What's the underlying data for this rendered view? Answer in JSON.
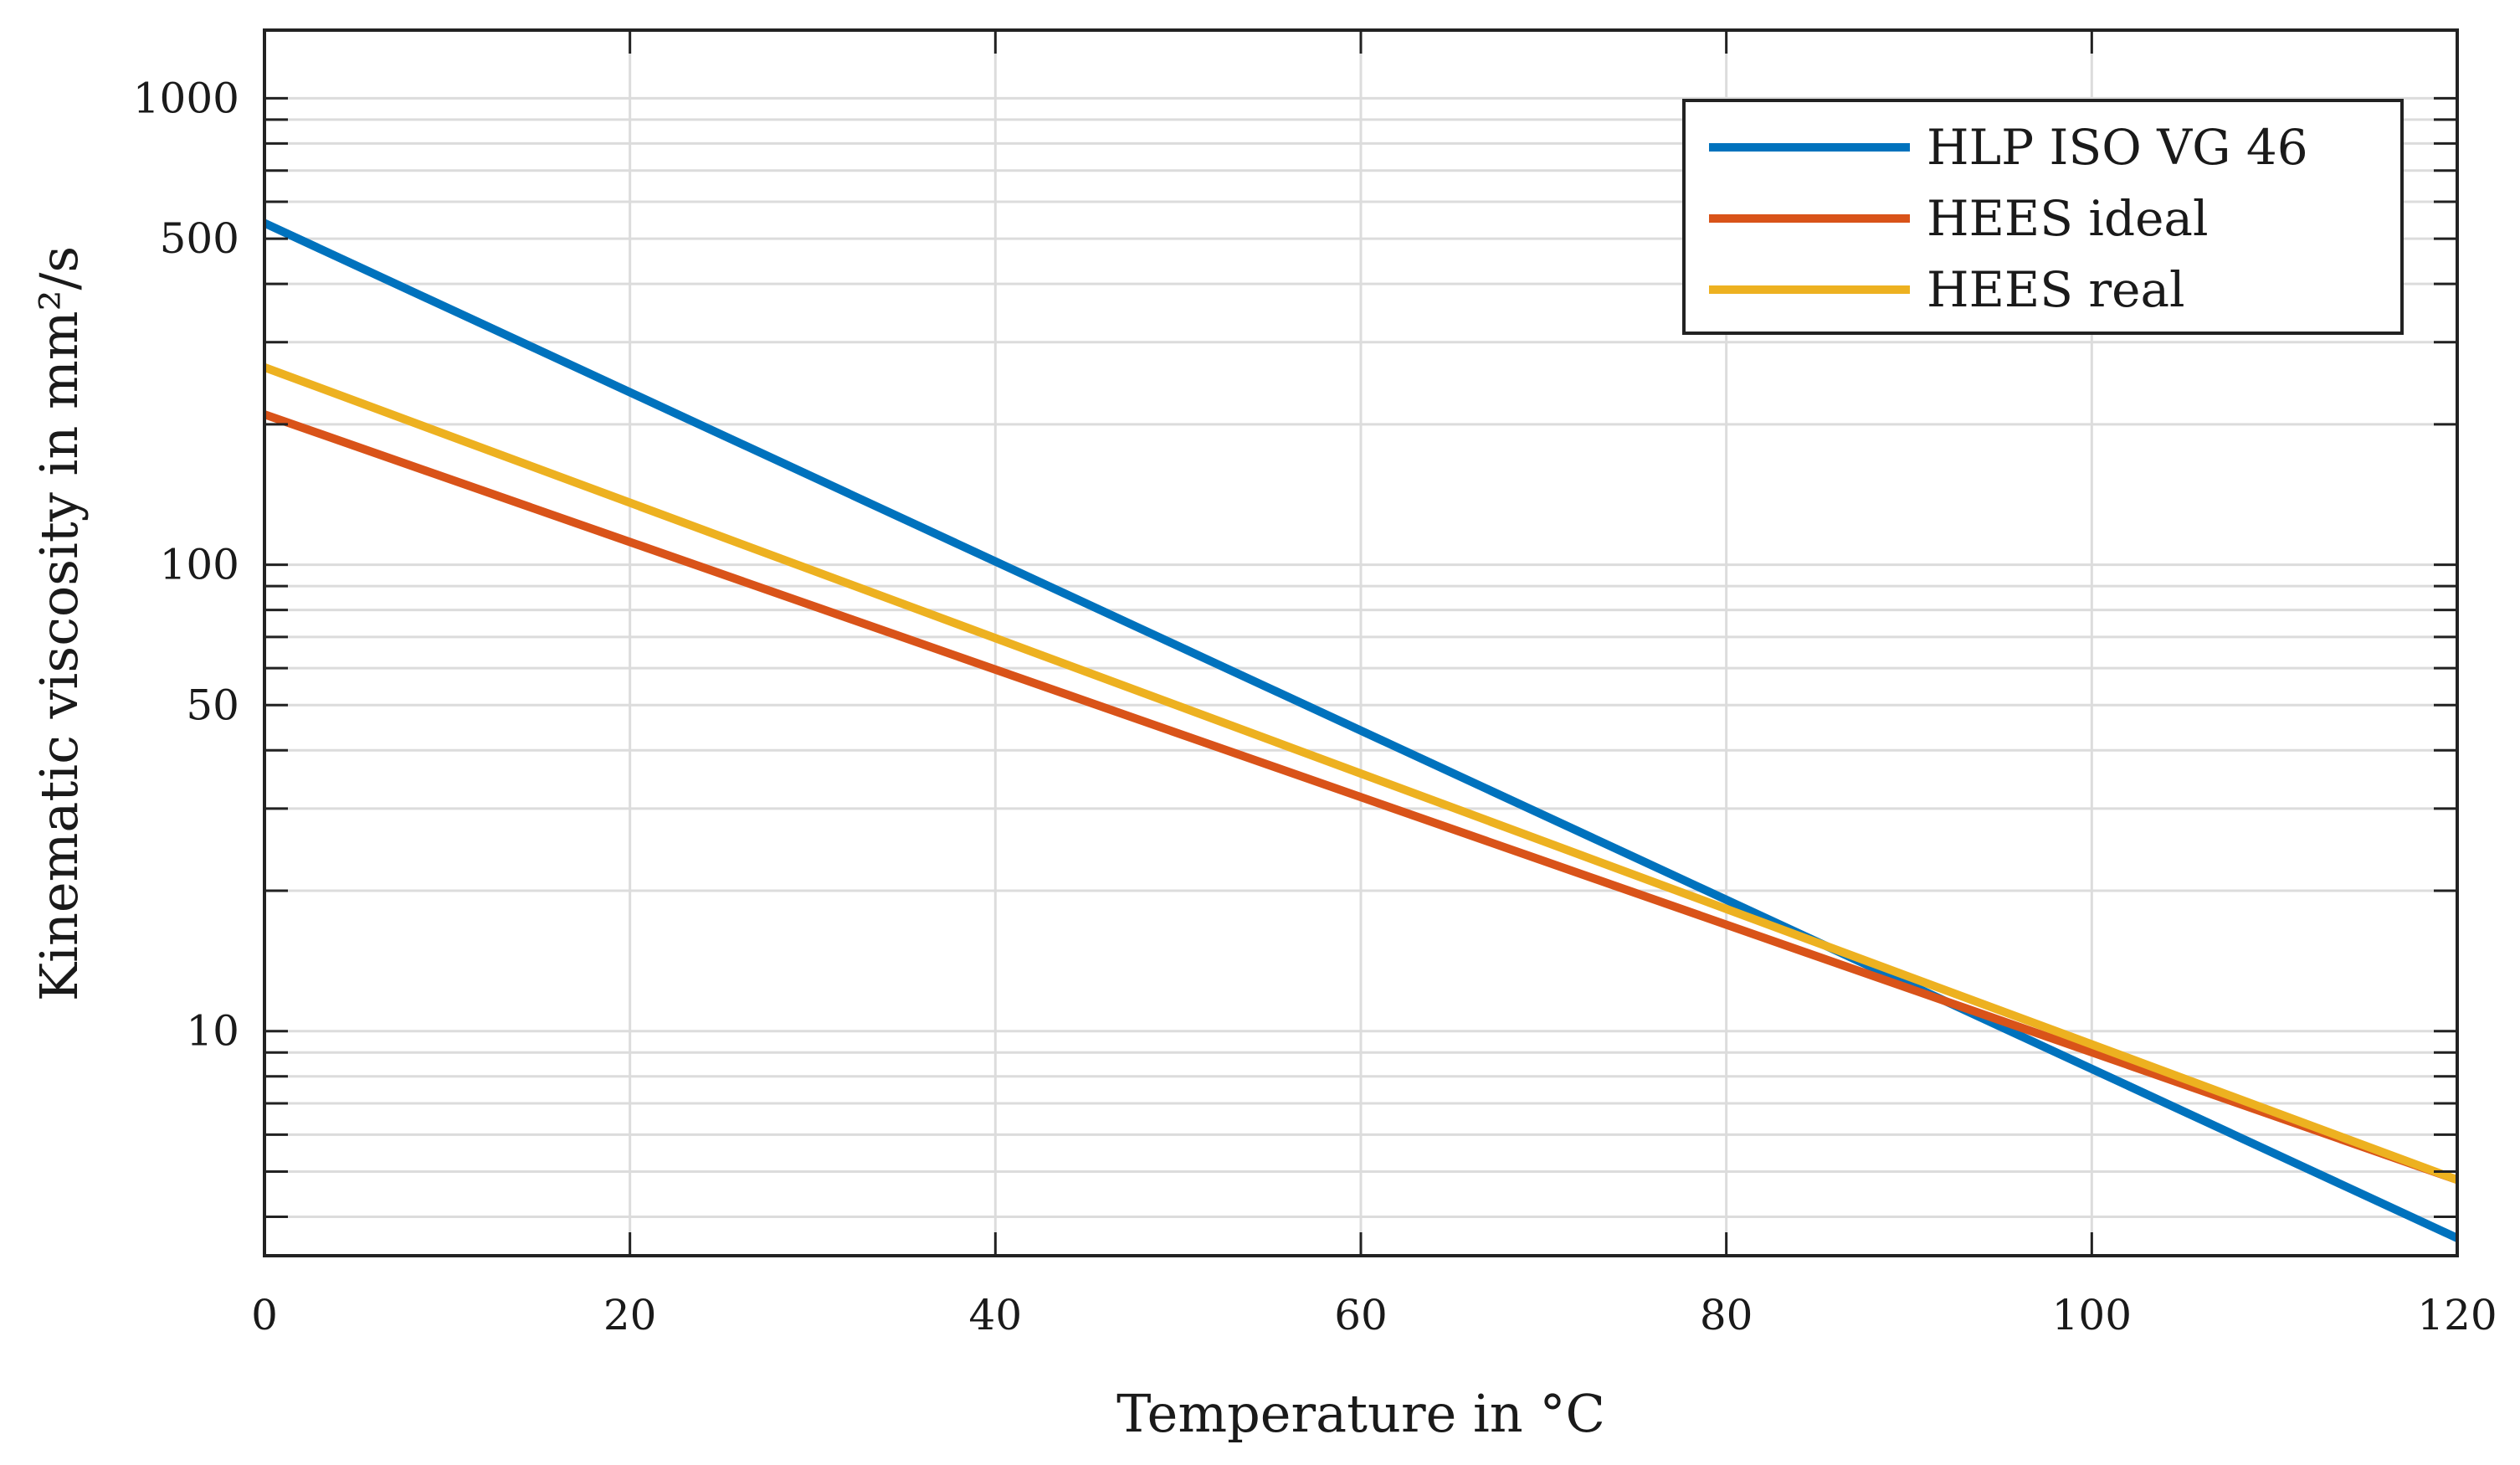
{
  "chart_data": {
    "type": "line",
    "title": "",
    "xlabel": "Temperature in °C",
    "ylabel": "Kinematic viscosity in mm²/s",
    "x_scale": "linear",
    "y_scale": "log",
    "xlim": [
      0,
      120
    ],
    "ylim": [
      3.3,
      1400
    ],
    "xticks": [
      0,
      20,
      40,
      60,
      80,
      100,
      120
    ],
    "xtick_labels": [
      "0",
      "20",
      "40",
      "60",
      "80",
      "100",
      "120"
    ],
    "yticks": [
      10,
      50,
      100,
      500,
      1000
    ],
    "ytick_labels": [
      "10",
      "50",
      "100",
      "500",
      "1000"
    ],
    "grid": true,
    "legend_position": "top-right",
    "series": [
      {
        "name": "HLP ISO VG 46",
        "color": "#0072BD",
        "x": [
          0,
          120
        ],
        "y": [
          540,
          3.6
        ]
      },
      {
        "name": "HEES ideal",
        "color": "#D95319",
        "x": [
          0,
          120
        ],
        "y": [
          210,
          4.8
        ]
      },
      {
        "name": "HEES real",
        "color": "#EDB120",
        "x": [
          0,
          120
        ],
        "y": [
          265,
          4.8
        ]
      }
    ]
  }
}
